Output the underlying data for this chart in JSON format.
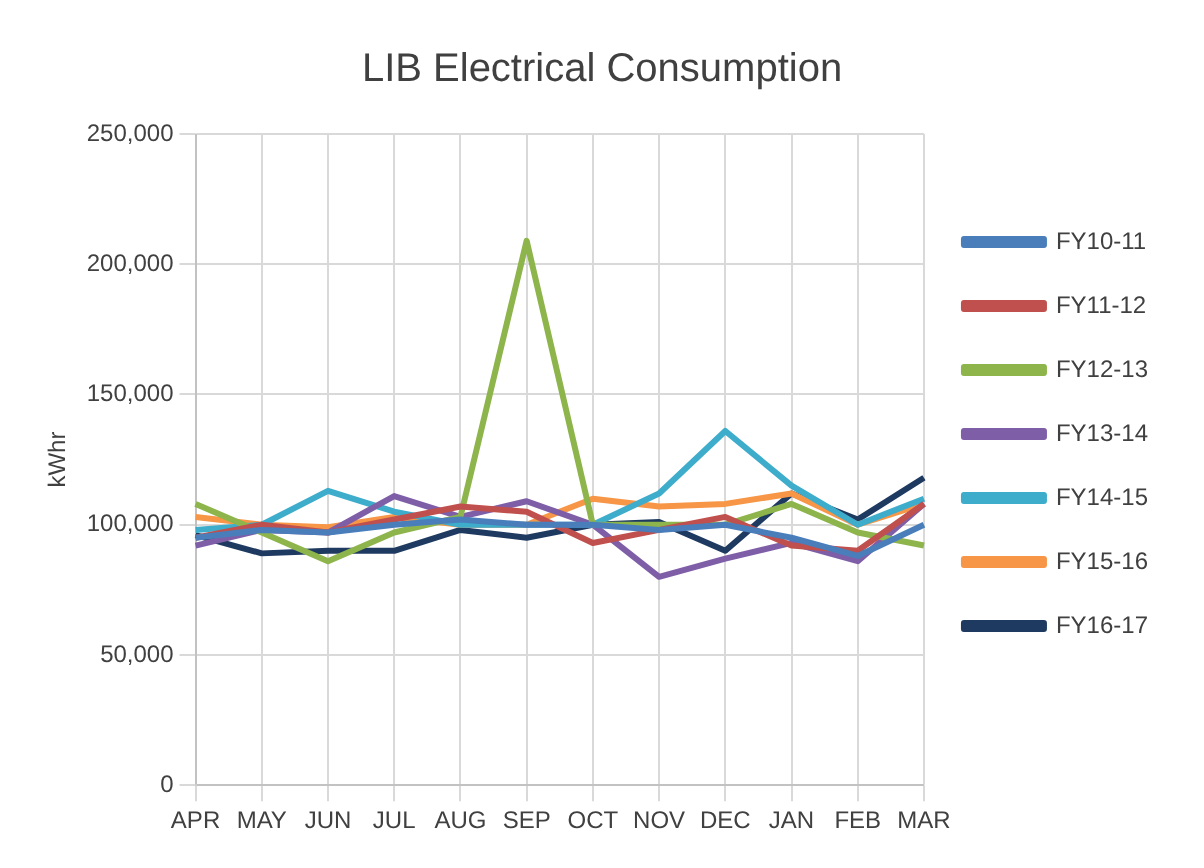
{
  "chart_data": {
    "type": "line",
    "title": "LIB Electrical Consumption",
    "ylabel": "kWhr",
    "categories": [
      "APR",
      "MAY",
      "JUN",
      "JUL",
      "AUG",
      "SEP",
      "OCT",
      "NOV",
      "DEC",
      "JAN",
      "FEB",
      "MAR"
    ],
    "series": [
      {
        "name": "FY10-11",
        "color": "#4a7ebb",
        "values": [
          95000,
          98000,
          97000,
          100000,
          102000,
          100000,
          100000,
          98000,
          100000,
          95000,
          88000,
          100000
        ]
      },
      {
        "name": "FY11-12",
        "color": "#c0504d",
        "values": [
          95000,
          100000,
          97000,
          102000,
          107000,
          105000,
          93000,
          98000,
          103000,
          92000,
          90000,
          108000
        ]
      },
      {
        "name": "FY12-13",
        "color": "#8db54b",
        "values": [
          108000,
          97000,
          86000,
          97000,
          103000,
          209000,
          100000,
          100000,
          100000,
          108000,
          97000,
          92000
        ]
      },
      {
        "name": "FY13-14",
        "color": "#7f5ea8",
        "values": [
          92000,
          98000,
          97000,
          111000,
          103000,
          109000,
          100000,
          80000,
          87000,
          93000,
          86000,
          108000
        ]
      },
      {
        "name": "FY14-15",
        "color": "#3eaccb",
        "values": [
          98000,
          100000,
          113000,
          105000,
          100000,
          100000,
          100000,
          112000,
          136000,
          115000,
          100000,
          110000
        ]
      },
      {
        "name": "FY15-16",
        "color": "#f79646",
        "values": [
          103000,
          100000,
          99000,
          103000,
          100000,
          100000,
          110000,
          107000,
          108000,
          112000,
          100000,
          108000
        ]
      },
      {
        "name": "FY16-17",
        "color": "#1f3a60",
        "values": [
          96000,
          89000,
          90000,
          90000,
          98000,
          95000,
          100000,
          101000,
          90000,
          112000,
          102000,
          118000
        ]
      }
    ],
    "ylim": [
      0,
      250000
    ],
    "yticks": [
      {
        "value": 0,
        "label": "0"
      },
      {
        "value": 50000,
        "label": "50,000"
      },
      {
        "value": 100000,
        "label": "100,000"
      },
      {
        "value": 150000,
        "label": "150,000"
      },
      {
        "value": 200000,
        "label": "200,000"
      },
      {
        "value": 250000,
        "label": "250,000"
      }
    ],
    "grid": true,
    "legend": "right",
    "marker": "none"
  }
}
